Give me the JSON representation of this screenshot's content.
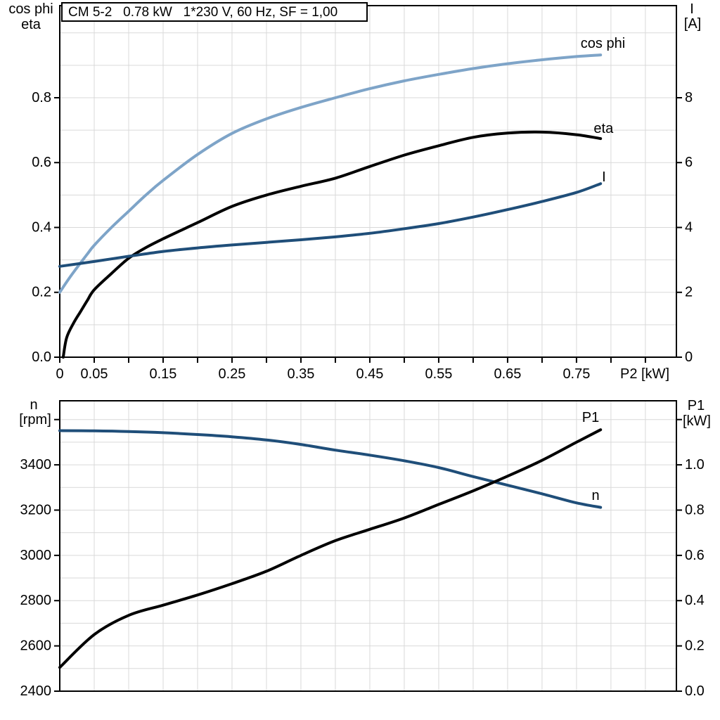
{
  "title_box": "CM 5-2   0.78 kW   1*230 V, 60 Hz, SF = 1,00",
  "colors": {
    "cos_phi_light_blue": "#7EA4C8",
    "dark_blue": "#1F4E79",
    "black": "#000000",
    "grid_gray": "#D9D9D9",
    "axis_black": "#000000",
    "background": "#FFFFFF"
  },
  "chart_data": [
    {
      "type": "line",
      "title": "CM 5-2   0.78 kW   1*230 V, 60 Hz, SF = 1,00",
      "xlabel": "P2 [kW]",
      "left_axis_title": [
        "cos phi",
        "eta"
      ],
      "right_axis_title": [
        "I",
        "[A]"
      ],
      "xlim": [
        0,
        0.895
      ],
      "left_ylim": [
        0,
        1.084
      ],
      "right_ylim": [
        0,
        10.84
      ],
      "x_grid_step": 0.05,
      "left_grid_step": 0.1,
      "x_tick_step": 0.05,
      "x_tick_max": 0.85,
      "x_tick_labels": [
        [
          0,
          "0"
        ],
        [
          0.05,
          "0.05"
        ],
        [
          0.15,
          "0.15"
        ],
        [
          0.25,
          "0.25"
        ],
        [
          0.35,
          "0.35"
        ],
        [
          0.45,
          "0.45"
        ],
        [
          0.55,
          "0.55"
        ],
        [
          0.65,
          "0.65"
        ],
        [
          0.75,
          "0.75"
        ]
      ],
      "left_ticks": [
        [
          0,
          "0.0"
        ],
        [
          0.2,
          "0.2"
        ],
        [
          0.4,
          "0.4"
        ],
        [
          0.6,
          "0.6"
        ],
        [
          0.8,
          "0.8"
        ]
      ],
      "right_ticks": [
        [
          0,
          "0"
        ],
        [
          2,
          "2"
        ],
        [
          4,
          "4"
        ],
        [
          6,
          "6"
        ],
        [
          8,
          "8"
        ]
      ],
      "grid": true,
      "legend_position": "inline-curve-labels",
      "series": [
        {
          "name": "cos phi",
          "slug": "cos-phi",
          "axis": "left",
          "color": "#7EA4C8",
          "width": 4,
          "x": [
            0,
            0.01,
            0.02,
            0.03,
            0.04,
            0.05,
            0.075,
            0.1,
            0.125,
            0.15,
            0.2,
            0.25,
            0.3,
            0.35,
            0.4,
            0.45,
            0.5,
            0.55,
            0.6,
            0.65,
            0.7,
            0.75,
            0.785
          ],
          "y": [
            0.2,
            0.232,
            0.262,
            0.29,
            0.318,
            0.345,
            0.4,
            0.45,
            0.5,
            0.545,
            0.625,
            0.69,
            0.735,
            0.77,
            0.8,
            0.828,
            0.852,
            0.872,
            0.89,
            0.905,
            0.917,
            0.927,
            0.932
          ],
          "label": {
            "text": "cos phi",
            "x": 0.756,
            "y": 0.967
          }
        },
        {
          "name": "eta",
          "slug": "eta",
          "axis": "left",
          "color": "#000000",
          "width": 4,
          "x": [
            0.005,
            0.01,
            0.02,
            0.03,
            0.04,
            0.05,
            0.075,
            0.1,
            0.125,
            0.15,
            0.2,
            0.25,
            0.3,
            0.35,
            0.4,
            0.45,
            0.5,
            0.55,
            0.6,
            0.65,
            0.7,
            0.75,
            0.785
          ],
          "y": [
            0,
            0.06,
            0.105,
            0.14,
            0.175,
            0.208,
            0.258,
            0.305,
            0.338,
            0.365,
            0.415,
            0.465,
            0.5,
            0.527,
            0.552,
            0.588,
            0.623,
            0.652,
            0.678,
            0.691,
            0.694,
            0.686,
            0.674
          ],
          "label": {
            "text": "eta",
            "x": 0.775,
            "y": 0.705
          }
        },
        {
          "name": "I",
          "slug": "current",
          "axis": "right",
          "color": "#1F4E79",
          "width": 4,
          "x": [
            0,
            0.05,
            0.1,
            0.15,
            0.2,
            0.25,
            0.3,
            0.35,
            0.4,
            0.45,
            0.5,
            0.55,
            0.6,
            0.65,
            0.7,
            0.75,
            0.785
          ],
          "y": [
            2.8,
            2.95,
            3.11,
            3.26,
            3.37,
            3.46,
            3.54,
            3.62,
            3.71,
            3.82,
            3.96,
            4.12,
            4.32,
            4.55,
            4.8,
            5.08,
            5.35
          ],
          "label": {
            "text": "I",
            "x": 0.787,
            "y": 5.55
          }
        }
      ]
    },
    {
      "type": "line",
      "title": null,
      "xlabel": null,
      "left_axis_title": [
        "n",
        "[rpm]"
      ],
      "right_axis_title": [
        "P1",
        "[kW]"
      ],
      "xlim": [
        0,
        0.895
      ],
      "left_ylim": [
        2400,
        3683
      ],
      "right_ylim": [
        0,
        1.283
      ],
      "x_grid_step": 0.05,
      "left_grid_step": 100,
      "x_tick_step": null,
      "x_tick_max": null,
      "x_tick_labels": [],
      "left_ticks": [
        [
          2400,
          "2400"
        ],
        [
          2600,
          "2600"
        ],
        [
          2800,
          "2800"
        ],
        [
          3000,
          "3000"
        ],
        [
          3200,
          "3200"
        ],
        [
          3400,
          "3400"
        ],
        [
          3600,
          null
        ]
      ],
      "right_ticks": [
        [
          0,
          "0.0"
        ],
        [
          0.2,
          "0.2"
        ],
        [
          0.4,
          "0.4"
        ],
        [
          0.6,
          "0.6"
        ],
        [
          0.8,
          "0.8"
        ],
        [
          1.0,
          "1.0"
        ],
        [
          1.2,
          null
        ]
      ],
      "grid": true,
      "legend_position": "inline-curve-labels",
      "series": [
        {
          "name": "n",
          "slug": "n",
          "axis": "left",
          "color": "#1F4E79",
          "width": 4,
          "x": [
            0,
            0.05,
            0.1,
            0.15,
            0.2,
            0.25,
            0.3,
            0.35,
            0.4,
            0.45,
            0.5,
            0.55,
            0.6,
            0.65,
            0.7,
            0.75,
            0.785
          ],
          "y": [
            3551,
            3550,
            3547,
            3542,
            3534,
            3524,
            3510,
            3490,
            3465,
            3443,
            3418,
            3388,
            3348,
            3310,
            3272,
            3232,
            3212
          ],
          "label": {
            "text": "n",
            "x": 0.772,
            "y": 3263
          }
        },
        {
          "name": "P1",
          "slug": "p1",
          "axis": "right",
          "color": "#000000",
          "width": 4,
          "x": [
            0,
            0.05,
            0.1,
            0.15,
            0.2,
            0.25,
            0.3,
            0.35,
            0.4,
            0.45,
            0.5,
            0.55,
            0.6,
            0.65,
            0.7,
            0.75,
            0.785
          ],
          "y": [
            0.105,
            0.25,
            0.335,
            0.38,
            0.425,
            0.475,
            0.53,
            0.6,
            0.665,
            0.715,
            0.765,
            0.825,
            0.885,
            0.95,
            1.02,
            1.1,
            1.155
          ],
          "label": {
            "text": "P1",
            "x": 0.758,
            "y": 1.208
          }
        }
      ]
    }
  ]
}
